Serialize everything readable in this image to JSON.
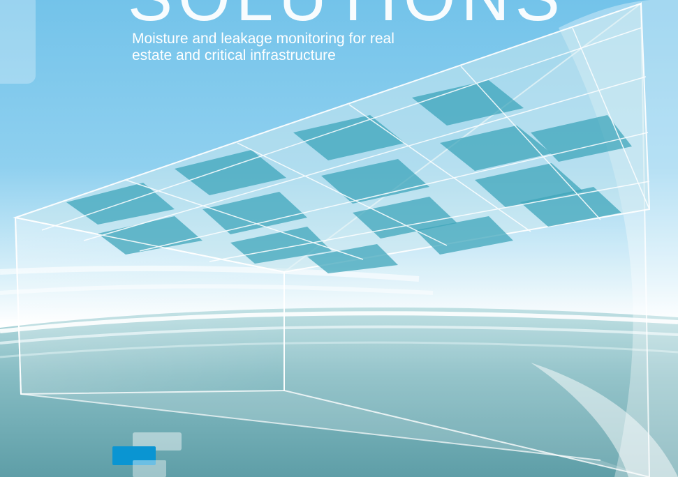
{
  "cover": {
    "headline_partial": "SOLUTIONS",
    "subtitle": "Moisture and leakage monitoring for real estate and critical infrastructure"
  },
  "colors": {
    "sky_top": "#7ec8ec",
    "sky_mid": "#a9dcf3",
    "horizon": "#ffffff",
    "water": "#7fb5bd",
    "water_dark": "#5f9ea8",
    "tile_teal": "#3aa3b8",
    "tile_light": "#cfeaf0",
    "logo_blue": "#0a95d2"
  },
  "icons": [
    "logo-mark-icon"
  ]
}
